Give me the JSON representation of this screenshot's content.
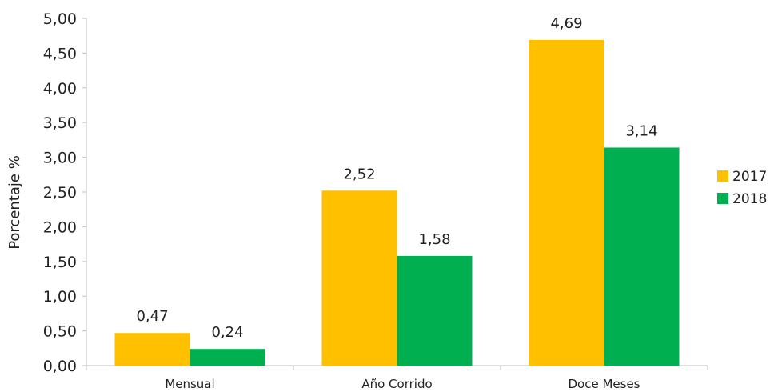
{
  "chart_data": {
    "type": "bar",
    "categories": [
      "Mensual",
      "Año Corrido",
      "Doce Meses"
    ],
    "series": [
      {
        "name": "2017",
        "values": [
          0.47,
          2.52,
          4.69
        ],
        "labels": [
          "0,47",
          "2,52",
          "4,69"
        ],
        "color": "#FFC000"
      },
      {
        "name": "2018",
        "values": [
          0.24,
          1.58,
          3.14
        ],
        "labels": [
          "0,24",
          "1,58",
          "3,14"
        ],
        "color": "#00B050"
      }
    ],
    "title": "",
    "xlabel": "",
    "ylabel": "Porcentaje  %",
    "ylim": [
      0,
      5
    ],
    "yticks": [
      0,
      0.5,
      1,
      1.5,
      2,
      2.5,
      3,
      3.5,
      4,
      4.5,
      5
    ],
    "ytick_labels": [
      "0,00",
      "0,50",
      "1,00",
      "1,50",
      "2,00",
      "2,50",
      "3,00",
      "3,50",
      "4,00",
      "4,50",
      "5,00"
    ],
    "grid": false,
    "legend_position": "right"
  }
}
